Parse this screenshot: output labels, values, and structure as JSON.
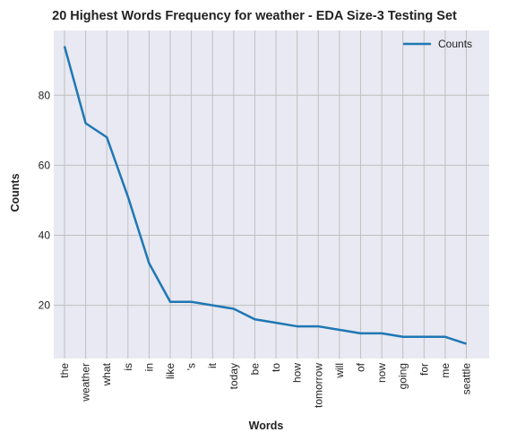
{
  "chart_data": {
    "type": "line",
    "title": "20 Highest Words Frequency for weather - EDA Size-3 Testing Set",
    "xlabel": "Words",
    "ylabel": "Counts",
    "categories": [
      "the",
      "weather",
      "what",
      "is",
      "in",
      "like",
      "'s",
      "it",
      "today",
      "be",
      "to",
      "how",
      "tomorrow",
      "will",
      "of",
      "now",
      "going",
      "for",
      "me",
      "seattle"
    ],
    "series": [
      {
        "name": "Counts",
        "values": [
          94,
          72,
          68,
          51,
          32,
          21,
          21,
          20,
          19,
          16,
          15,
          14,
          14,
          13,
          12,
          12,
          11,
          11,
          11,
          9
        ]
      }
    ],
    "ylim": [
      4.8,
      98.5
    ],
    "yticks": [
      20,
      40,
      60,
      80
    ],
    "grid": true,
    "legend": "top-right",
    "colors": {
      "line": "#1f77b4",
      "plot_bg": "#e8e9f2",
      "grid": "#c0c0c0"
    }
  }
}
